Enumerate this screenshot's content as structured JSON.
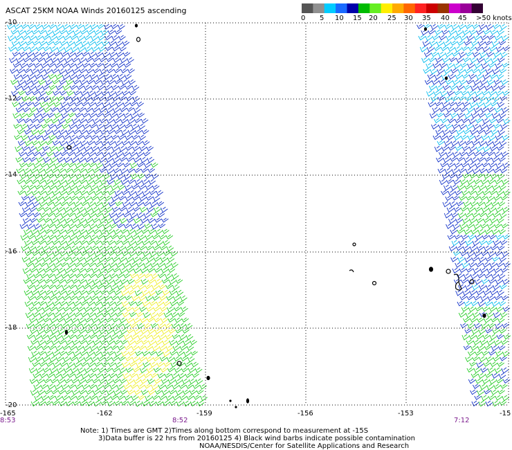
{
  "title": "ASCAT 25KM NOAA Winds 20160125 ascending",
  "legend": {
    "colors": [
      "#555555",
      "#909090",
      "#00ccff",
      "#1a6aff",
      "#0000aa",
      "#00bb00",
      "#66ee22",
      "#ffee00",
      "#ffaa00",
      "#ff6600",
      "#ff2222",
      "#cc0000",
      "#993300",
      "#cc00cc",
      "#990099",
      "#330033"
    ],
    "labels": [
      "0",
      "5",
      "10",
      "15",
      "20",
      "25",
      "30",
      "35",
      "40",
      "45",
      ">50 knots"
    ]
  },
  "lat_labels": [
    "-10",
    "-12",
    "-14",
    "-16",
    "-18",
    "-20"
  ],
  "lon_labels": [
    "-165",
    "-162",
    "-159",
    "-156",
    "-153",
    "-15"
  ],
  "times": {
    "left": "8:53",
    "middle": "8:52",
    "right": "7:12"
  },
  "notes": {
    "line1": "Note: 1) Times are GMT 2)Times along bottom correspond to measurement at -15S",
    "line2": "3)Data buffer is 22 hrs from 20160125 4) Black wind barbs indicate possible contamination",
    "line3": "NOAA/NESDIS/Center for Satellite Applications and Research"
  },
  "wind_colors": {
    "cyan": "#00bbee",
    "blue": "#1030c8",
    "green": "#22cc22",
    "yellow": "#eeee22",
    "black": "#000000"
  }
}
